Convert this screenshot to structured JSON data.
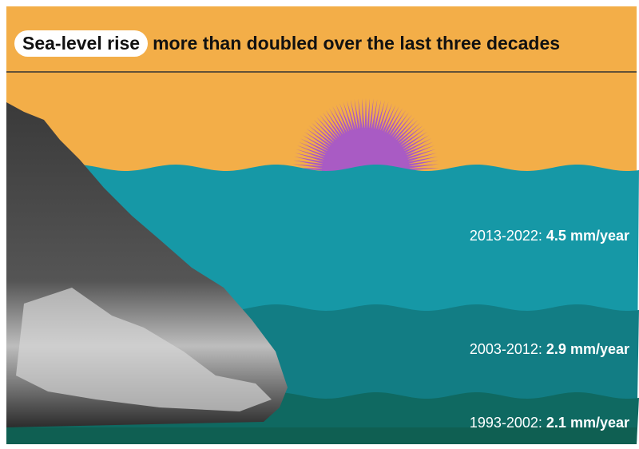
{
  "header": {
    "highlight": "Sea-level rise",
    "title": "more than doubled over the last three decades"
  },
  "levels": [
    {
      "period": "2013-2022:",
      "rate": "4.5 mm/year"
    },
    {
      "period": "2003-2012:",
      "rate": "2.9 mm/year"
    },
    {
      "period": "1993-2002:",
      "rate": "2.1 mm/year"
    }
  ]
}
